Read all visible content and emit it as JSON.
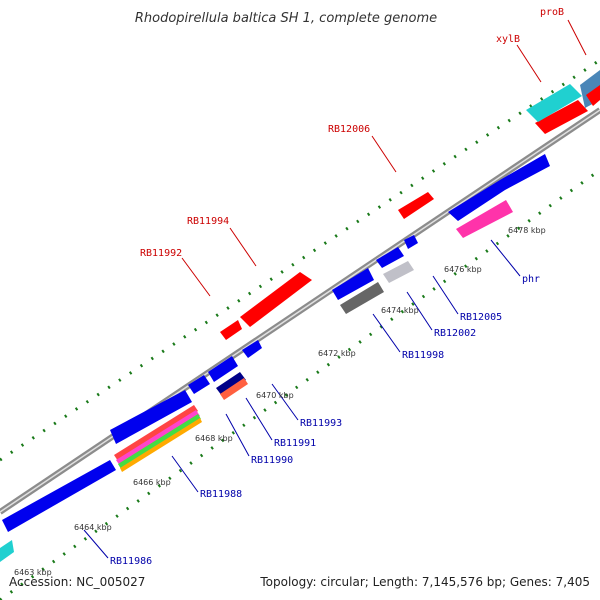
{
  "title": "Rhodopirellula baltica SH 1, complete genome",
  "footer": {
    "accession": "Accession: NC_005027",
    "summary": "Topology: circular; Length: 7,145,576 bp; Genes: 7,405"
  },
  "colors": {
    "forward_gene": "#ff0000",
    "reverse_gene": "#0000ee",
    "forward_label": "#cc0000",
    "reverse_label": "#0000aa",
    "backbone": "#8c8c8c",
    "tick": "#1a7a1a"
  },
  "kbp_labels": [
    "6463 kbp",
    "6464 kbp",
    "6466 kbp",
    "6468 kbp",
    "6470 kbp",
    "6472 kbp",
    "6474 kbp",
    "6476 kbp",
    "6478 kbp"
  ],
  "gene_labels": {
    "forward": [
      "proB",
      "xylB",
      "RB12006",
      "RB11994",
      "RB11992"
    ],
    "reverse": [
      "phr",
      "RB12005",
      "RB12002",
      "RB11998",
      "RB11993",
      "RB11991",
      "RB11990",
      "RB11988",
      "RB11986"
    ]
  }
}
